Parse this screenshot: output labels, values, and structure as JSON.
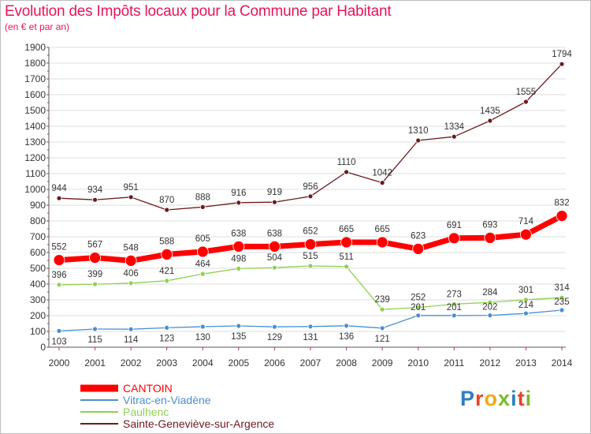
{
  "chart_data": {
    "type": "line",
    "title": "Evolution des Impôts locaux pour la Commune par Habitant",
    "subtitle": "(en € et par an)",
    "x": [
      "2000",
      "2001",
      "2002",
      "2003",
      "2004",
      "2005",
      "2006",
      "2007",
      "2008",
      "2009",
      "2010",
      "2011",
      "2012",
      "2013",
      "2014"
    ],
    "ylim": [
      0,
      1900
    ],
    "yticks": [
      0,
      100,
      200,
      300,
      400,
      500,
      600,
      700,
      800,
      900,
      1000,
      1100,
      1200,
      1300,
      1400,
      1500,
      1600,
      1700,
      1800,
      1900
    ],
    "grid": true,
    "legend_position": "bottom-left",
    "series": [
      {
        "name": "Sainte-Geneviève-sur-Argence",
        "color": "#6b1a1f",
        "values": [
          944,
          934,
          951,
          870,
          888,
          916,
          919,
          956,
          1110,
          1042,
          1310,
          1334,
          1435,
          1555,
          1794
        ]
      },
      {
        "name": "Paulhenc",
        "color": "#8fd14f",
        "values": [
          396,
          399,
          406,
          421,
          464,
          498,
          504,
          515,
          511,
          239,
          252,
          273,
          284,
          301,
          314
        ]
      },
      {
        "name": "Vitrac-en-Viadène",
        "color": "#4a8fd0",
        "values": [
          103,
          115,
          114,
          123,
          130,
          135,
          129,
          131,
          136,
          121,
          201,
          201,
          202,
          214,
          235
        ]
      },
      {
        "name": "CANTOIN",
        "color": "#ff0000",
        "values": [
          552,
          567,
          548,
          588,
          605,
          638,
          638,
          652,
          665,
          665,
          623,
          691,
          693,
          714,
          832
        ]
      }
    ]
  },
  "logo": {
    "letters": [
      "P",
      "r",
      "o",
      "x",
      "i",
      "t",
      "i"
    ]
  }
}
